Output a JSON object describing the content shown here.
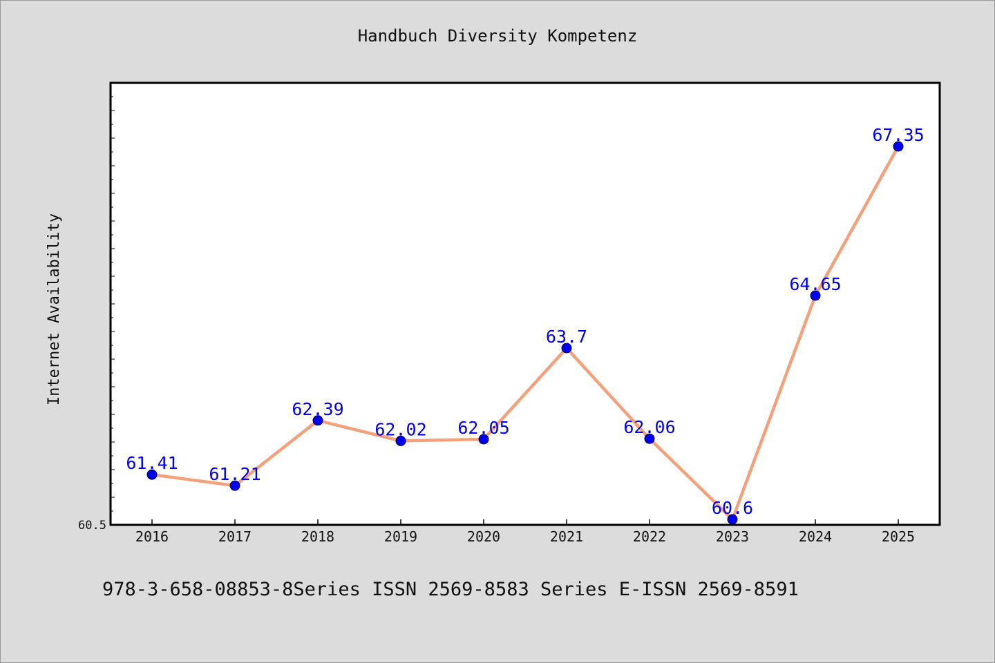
{
  "chart_data": {
    "type": "line",
    "title": "Handbuch Diversity Kompetenz",
    "xlabel": "",
    "ylabel": "Internet Availability",
    "categories": [
      "2016",
      "2017",
      "2018",
      "2019",
      "2020",
      "2021",
      "2022",
      "2023",
      "2024",
      "2025"
    ],
    "series": [
      {
        "values": [
          61.41,
          61.21,
          62.39,
          62.02,
          62.05,
          63.7,
          62.06,
          60.6,
          64.65,
          67.35
        ],
        "data_labels": [
          "61.41",
          "61.21",
          "62.39",
          "62.02",
          "62.05",
          "63.7",
          "62.06",
          "60.6",
          "64.65",
          "67.35"
        ],
        "line_color": "#f4a07a",
        "marker_color": "#0000ee"
      }
    ],
    "ylim": [
      60.5,
      68.5
    ],
    "y_tick_label": "60.5",
    "grid": false,
    "legend": "none",
    "footer": "978-3-658-08853-8Series ISSN 2569-8583 Series E-ISSN 2569-8591",
    "colors": {
      "background": "#dcdcdc",
      "plot_background": "#ffffff",
      "label_color": "#0000ee",
      "text_color": "#111111"
    }
  }
}
